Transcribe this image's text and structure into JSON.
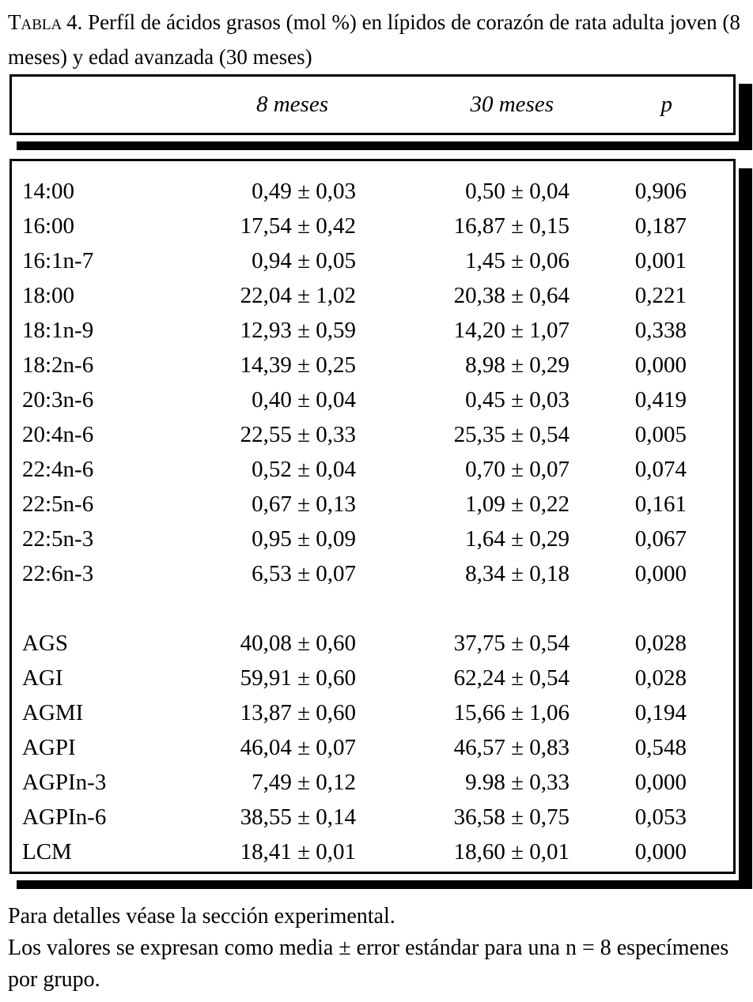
{
  "title": {
    "label": "Tabla",
    "text": "4. Perfíl de ácidos grasos (mol %) en lípidos de corazón de rata adulta joven (8 meses) y edad avanzada (30 meses)"
  },
  "header": {
    "columns": [
      "8 meses",
      "30 meses",
      "p"
    ]
  },
  "table": {
    "groups": [
      {
        "rows": [
          {
            "label": "14:00",
            "m8": "0,49 ± 0,03",
            "m30": "0,50 ± 0,04",
            "p": "0,906"
          },
          {
            "label": "16:00",
            "m8": "17,54 ± 0,42",
            "m30": "16,87 ± 0,15",
            "p": "0,187"
          },
          {
            "label": "16:1n-7",
            "m8": "0,94 ± 0,05",
            "m30": "1,45 ± 0,06",
            "p": "0,001"
          },
          {
            "label": "18:00",
            "m8": "22,04 ± 1,02",
            "m30": "20,38 ± 0,64",
            "p": "0,221"
          },
          {
            "label": "18:1n-9",
            "m8": "12,93 ± 0,59",
            "m30": "14,20 ± 1,07",
            "p": "0,338"
          },
          {
            "label": "18:2n-6",
            "m8": "14,39 ± 0,25",
            "m30": "8,98 ± 0,29",
            "p": "0,000"
          },
          {
            "label": "20:3n-6",
            "m8": "0,40 ± 0,04",
            "m30": "0,45 ± 0,03",
            "p": "0,419"
          },
          {
            "label": "20:4n-6",
            "m8": "22,55 ± 0,33",
            "m30": "25,35 ± 0,54",
            "p": "0,005"
          },
          {
            "label": "22:4n-6",
            "m8": "0,52 ± 0,04",
            "m30": "0,70 ± 0,07",
            "p": "0,074"
          },
          {
            "label": "22:5n-6",
            "m8": "0,67 ± 0,13",
            "m30": "1,09 ± 0,22",
            "p": "0,161"
          },
          {
            "label": "22:5n-3",
            "m8": "0,95 ± 0,09",
            "m30": "1,64 ± 0,29",
            "p": "0,067"
          },
          {
            "label": "22:6n-3",
            "m8": "6,53 ± 0,07",
            "m30": "8,34 ± 0,18",
            "p": "0,000"
          }
        ]
      },
      {
        "rows": [
          {
            "label": "AGS",
            "m8": "40,08 ± 0,60",
            "m30": "37,75 ± 0,54",
            "p": "0,028"
          },
          {
            "label": "AGI",
            "m8": "59,91 ± 0,60",
            "m30": "62,24 ± 0,54",
            "p": "0,028"
          },
          {
            "label": "AGMI",
            "m8": "13,87 ± 0,60",
            "m30": "15,66 ± 1,06",
            "p": "0,194"
          },
          {
            "label": "AGPI",
            "m8": "46,04 ± 0,07",
            "m30": "46,57 ± 0,83",
            "p": "0,548"
          },
          {
            "label": "AGPIn-3",
            "m8": "7,49 ± 0,12",
            "m30": "9.98 ± 0,33",
            "p": "0,000"
          },
          {
            "label": "AGPIn-6",
            "m8": "38,55 ± 0,14",
            "m30": "36,58 ± 0,75",
            "p": "0,053"
          },
          {
            "label": "LCM",
            "m8": "18,41 ± 0,01",
            "m30": "18,60 ± 0,01",
            "p": "0,000"
          }
        ]
      }
    ]
  },
  "footnotes": [
    "Para detalles véase la sección experimental.",
    "Los valores se expresan como media ± error estándar para una n = 8 especímenes por grupo."
  ]
}
